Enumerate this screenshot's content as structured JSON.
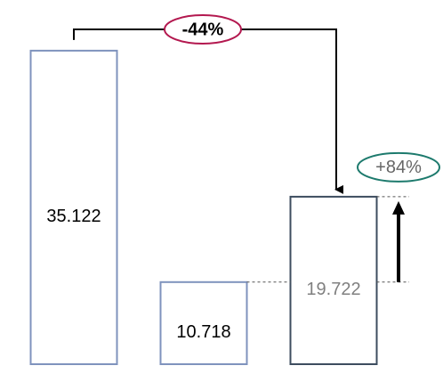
{
  "chart_data": {
    "type": "bar",
    "values": [
      35.122,
      10.718,
      19.722
    ],
    "colors": [
      "#7f93bd",
      "#7f93bd",
      "#3d4d5f"
    ],
    "label_colors": [
      "#000000",
      "#000000",
      "#808080"
    ],
    "ylim": [
      3,
      38
    ],
    "annotations": [
      {
        "text": "-44%",
        "color": "#b3184f"
      },
      {
        "text": "+84%",
        "color": "#1d7a6d"
      }
    ]
  }
}
